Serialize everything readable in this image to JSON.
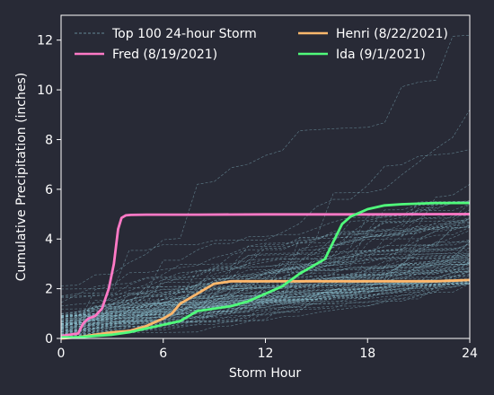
{
  "chart_data": {
    "type": "line",
    "xlabel": "Storm Hour",
    "ylabel": "Cumulative Precipitation (inches)",
    "xlim": [
      0,
      24
    ],
    "ylim": [
      0,
      13
    ],
    "xticks": [
      0,
      6,
      12,
      18,
      24
    ],
    "yticks": [
      0,
      2,
      4,
      6,
      8,
      10,
      12
    ],
    "grid": false,
    "legend_position": "top",
    "background_color": "#282a36",
    "background_series": {
      "name": "Top 100 24-hour Storm",
      "color": "#8fc7d6",
      "count": 100
    },
    "series": [
      {
        "name": "Fred (8/19/2021)",
        "color": "#ff79c6",
        "x": [
          0,
          0.5,
          1,
          1.3,
          1.6,
          2,
          2.4,
          2.8,
          3.1,
          3.35,
          3.55,
          3.8,
          4.1,
          5,
          8,
          12,
          18,
          24
        ],
        "y": [
          0.1,
          0.15,
          0.2,
          0.6,
          0.8,
          0.9,
          1.2,
          2.0,
          3.0,
          4.4,
          4.85,
          4.95,
          4.97,
          4.98,
          4.98,
          4.99,
          4.99,
          5.0
        ]
      },
      {
        "name": "Henri (8/22/2021)",
        "color": "#ffb86c",
        "x": [
          0,
          1,
          2,
          3,
          4,
          5,
          6,
          6.5,
          7,
          7.5,
          8,
          8.5,
          9,
          10,
          12,
          15,
          18,
          20,
          22,
          24
        ],
        "y": [
          0,
          0.05,
          0.15,
          0.25,
          0.3,
          0.5,
          0.8,
          1.0,
          1.4,
          1.6,
          1.8,
          2.0,
          2.2,
          2.3,
          2.3,
          2.3,
          2.3,
          2.3,
          2.3,
          2.35
        ]
      },
      {
        "name": "Ida (9/1/2021)",
        "color": "#50fa7b",
        "x": [
          0,
          1,
          2,
          3,
          4,
          5,
          6,
          7,
          8,
          9,
          10,
          11,
          12,
          13,
          14,
          15,
          15.5,
          16,
          16.5,
          17,
          18,
          19,
          20,
          22,
          24
        ],
        "y": [
          0.05,
          0.05,
          0.1,
          0.15,
          0.25,
          0.4,
          0.55,
          0.7,
          1.1,
          1.2,
          1.3,
          1.5,
          1.8,
          2.1,
          2.6,
          3.0,
          3.2,
          3.9,
          4.6,
          4.9,
          5.2,
          5.35,
          5.4,
          5.45,
          5.45
        ]
      }
    ]
  }
}
